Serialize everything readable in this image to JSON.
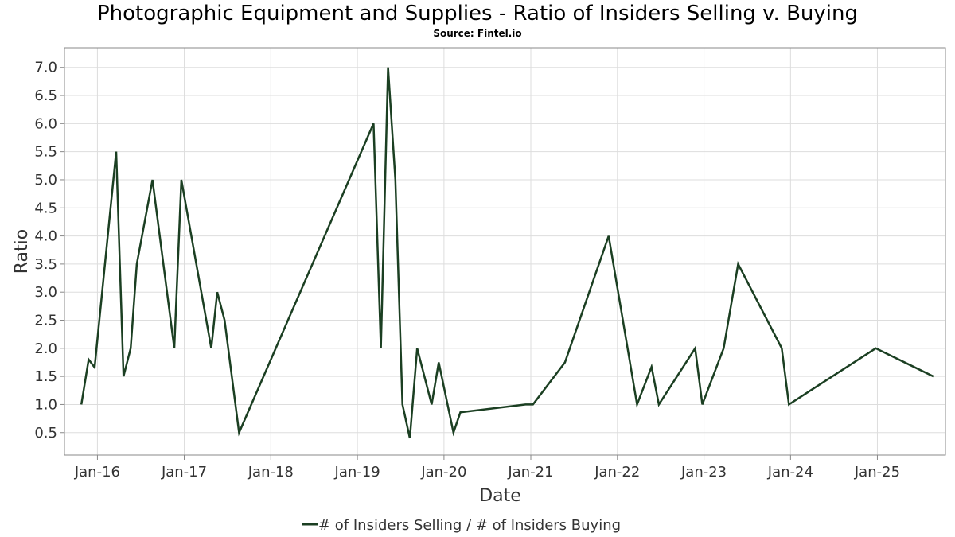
{
  "title": "Photographic Equipment and Supplies - Ratio of Insiders Selling v. Buying",
  "subtitle": "Source: Fintel.io",
  "colors": {
    "line": "#1b3f22",
    "grid": "#dddddd",
    "axis": "#888888"
  },
  "chart_data": {
    "type": "line",
    "xlabel": "Date",
    "ylabel": "Ratio",
    "ylim": [
      0.1,
      7.35
    ],
    "xlim": [
      "2015-08-15",
      "2025-10-15"
    ],
    "grid": true,
    "legend_position": "bottom-center",
    "yticks": [
      0.5,
      1.0,
      1.5,
      2.0,
      2.5,
      3.0,
      3.5,
      4.0,
      4.5,
      5.0,
      5.5,
      6.0,
      6.5,
      7.0
    ],
    "ytick_labels": [
      "0.5",
      "1.0",
      "1.5",
      "2.0",
      "2.5",
      "3.0",
      "3.5",
      "4.0",
      "4.5",
      "5.0",
      "5.5",
      "6.0",
      "6.5",
      "7.0"
    ],
    "xticks": [
      {
        "date": "2016-01-01",
        "label": "Jan-16"
      },
      {
        "date": "2017-01-01",
        "label": "Jan-17"
      },
      {
        "date": "2018-01-01",
        "label": "Jan-18"
      },
      {
        "date": "2019-01-01",
        "label": "Jan-19"
      },
      {
        "date": "2020-01-01",
        "label": "Jan-20"
      },
      {
        "date": "2021-01-01",
        "label": "Jan-21"
      },
      {
        "date": "2022-01-01",
        "label": "Jan-22"
      },
      {
        "date": "2023-01-01",
        "label": "Jan-23"
      },
      {
        "date": "2024-01-01",
        "label": "Jan-24"
      },
      {
        "date": "2025-01-01",
        "label": "Jan-25"
      }
    ],
    "series": [
      {
        "name": "# of Insiders Selling / # of Insiders Buying",
        "points": [
          [
            "2015-10-25",
            1.0
          ],
          [
            "2015-11-25",
            1.8
          ],
          [
            "2015-12-20",
            1.66
          ],
          [
            "2016-03-20",
            5.5
          ],
          [
            "2016-04-20",
            1.5
          ],
          [
            "2016-05-20",
            2.0
          ],
          [
            "2016-06-15",
            3.5
          ],
          [
            "2016-08-20",
            5.0
          ],
          [
            "2016-11-20",
            2.0
          ],
          [
            "2016-12-20",
            5.0
          ],
          [
            "2017-04-25",
            2.0
          ],
          [
            "2017-05-20",
            3.0
          ],
          [
            "2017-06-20",
            2.5
          ],
          [
            "2017-08-20",
            0.5
          ],
          [
            "2019-03-10",
            6.0
          ],
          [
            "2019-04-10",
            2.0
          ],
          [
            "2019-05-10",
            7.0
          ],
          [
            "2019-06-10",
            5.0
          ],
          [
            "2019-07-10",
            1.0
          ],
          [
            "2019-08-10",
            0.4
          ],
          [
            "2019-09-10",
            2.0
          ],
          [
            "2019-11-10",
            1.0
          ],
          [
            "2019-12-10",
            1.75
          ],
          [
            "2020-02-10",
            0.5
          ],
          [
            "2020-03-10",
            0.86
          ],
          [
            "2020-12-10",
            1.0
          ],
          [
            "2021-01-10",
            1.0
          ],
          [
            "2021-05-25",
            1.75
          ],
          [
            "2021-11-25",
            4.0
          ],
          [
            "2022-03-25",
            1.0
          ],
          [
            "2022-05-25",
            1.67
          ],
          [
            "2022-06-25",
            1.0
          ],
          [
            "2022-11-25",
            2.0
          ],
          [
            "2022-12-25",
            1.0
          ],
          [
            "2023-03-25",
            2.0
          ],
          [
            "2023-05-25",
            3.5
          ],
          [
            "2023-11-25",
            2.0
          ],
          [
            "2023-12-25",
            1.0
          ],
          [
            "2024-12-25",
            2.0
          ],
          [
            "2025-08-25",
            1.5
          ]
        ]
      }
    ]
  }
}
